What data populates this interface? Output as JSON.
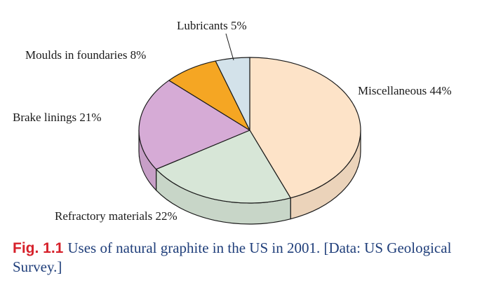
{
  "chart_data": {
    "type": "pie",
    "style": "3d",
    "slices": [
      {
        "label": "Miscellaneous",
        "value": 44,
        "value_label": "44%",
        "color": "#fde3c8"
      },
      {
        "label": "Refractory materials",
        "value": 22,
        "value_label": "22%",
        "color": "#d7e6d7"
      },
      {
        "label": "Brake linings",
        "value": 21,
        "value_label": "21%",
        "color": "#d6abd6"
      },
      {
        "label": "Moulds in foundaries",
        "value": 8,
        "value_label": "8%",
        "color": "#f5a623"
      },
      {
        "label": "Lubricants",
        "value": 5,
        "value_label": "5%",
        "color": "#d3e2ea"
      }
    ],
    "start": "12 o'clock",
    "direction": "clockwise",
    "legend": "none",
    "outline_color": "#1a1a1a"
  },
  "caption": {
    "fig_label": "Fig. 1.1",
    "text": "Uses of natural graphite in the US in 2001. [Data: US Geological Survey.]"
  },
  "colors": {
    "fig_label": "#d6202a",
    "caption_text": "#1f3e7a"
  }
}
